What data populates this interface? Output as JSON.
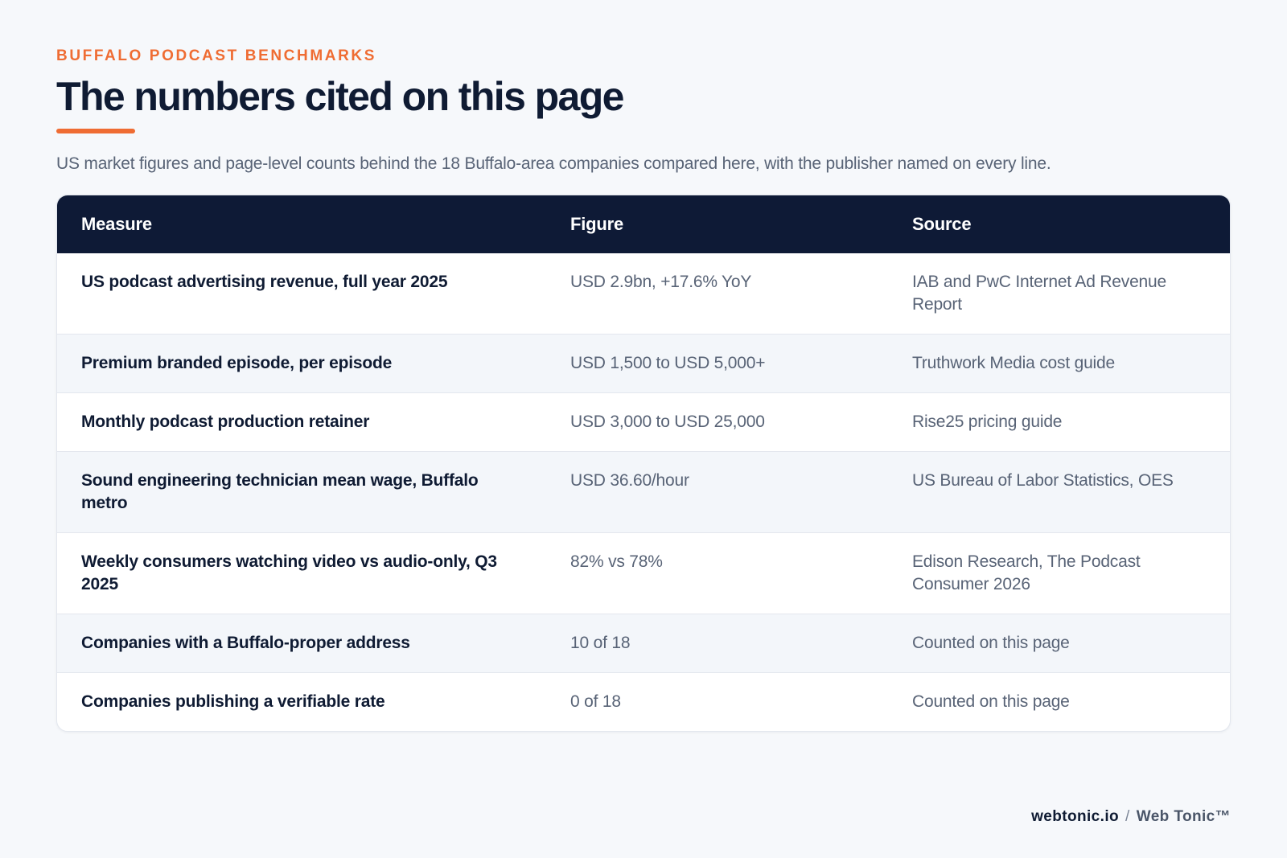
{
  "header": {
    "eyebrow": "BUFFALO PODCAST BENCHMARKS",
    "title": "The numbers cited on this page",
    "subtitle": "US market figures and page-level counts behind the 18 Buffalo-area companies compared here, with the publisher named on every line."
  },
  "table": {
    "columns": [
      "Measure",
      "Figure",
      "Source"
    ],
    "rows": [
      {
        "measure": "US podcast advertising revenue, full year 2025",
        "figure": "USD 2.9bn, +17.6% YoY",
        "source": "IAB and PwC Internet Ad Revenue Report"
      },
      {
        "measure": "Premium branded episode, per episode",
        "figure": "USD 1,500 to USD 5,000+",
        "source": "Truthwork Media cost guide"
      },
      {
        "measure": "Monthly podcast production retainer",
        "figure": "USD 3,000 to USD 25,000",
        "source": "Rise25 pricing guide"
      },
      {
        "measure": "Sound engineering technician mean wage, Buffalo metro",
        "figure": "USD 36.60/hour",
        "source": "US Bureau of Labor Statistics, OES"
      },
      {
        "measure": "Weekly consumers watching video vs audio-only, Q3 2025",
        "figure": "82% vs 78%",
        "source": "Edison Research, The Podcast Consumer 2026"
      },
      {
        "measure": "Companies with a Buffalo-proper address",
        "figure": "10 of 18",
        "source": "Counted on this page"
      },
      {
        "measure": "Companies publishing a verifiable rate",
        "figure": "0 of 18",
        "source": "Counted on this page"
      }
    ]
  },
  "footer": {
    "domain": "webtonic.io",
    "separator": "/",
    "brand": "Web Tonic™"
  },
  "colors": {
    "accent": "#ef6c33",
    "header_bg": "#0e1a36",
    "page_bg": "#f6f8fb"
  }
}
